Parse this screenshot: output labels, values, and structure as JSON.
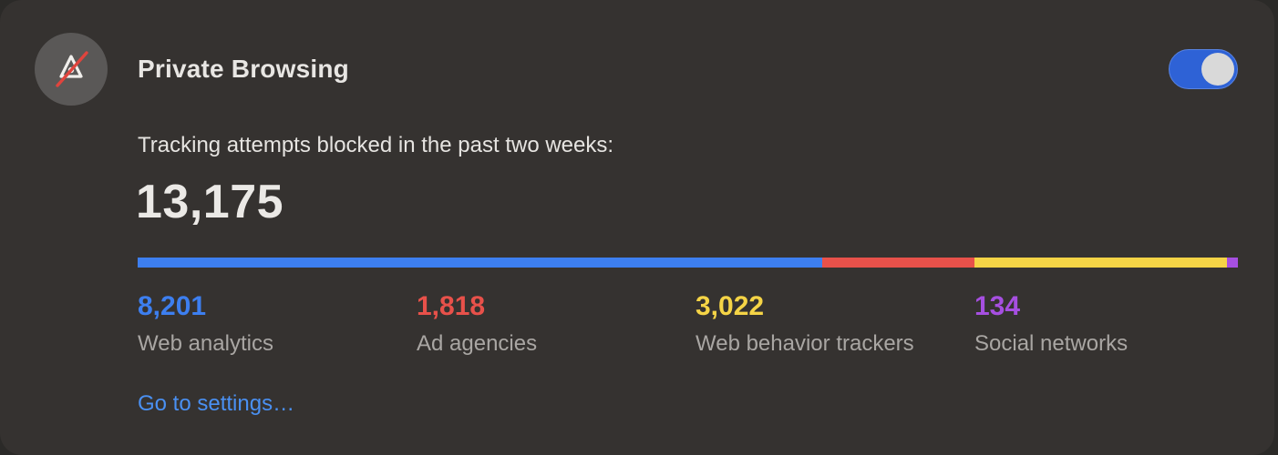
{
  "header": {
    "title": "Private Browsing",
    "toggle_on": true,
    "icon": "private-browsing-shield-icon"
  },
  "summary": {
    "subtitle": "Tracking attempts blocked in the past two weeks:",
    "total": "13,175",
    "total_value": 13175
  },
  "categories": [
    {
      "value": "8,201",
      "count": 8201,
      "label": "Web analytics",
      "color": "#3d7ff0"
    },
    {
      "value": "1,818",
      "count": 1818,
      "label": "Ad agencies",
      "color": "#e8514a"
    },
    {
      "value": "3,022",
      "count": 3022,
      "label": "Web behavior trackers",
      "color": "#f5d446"
    },
    {
      "value": "134",
      "count": 134,
      "label": "Social networks",
      "color": "#a64fe0"
    }
  ],
  "footer": {
    "settings_link": "Go to settings…"
  }
}
